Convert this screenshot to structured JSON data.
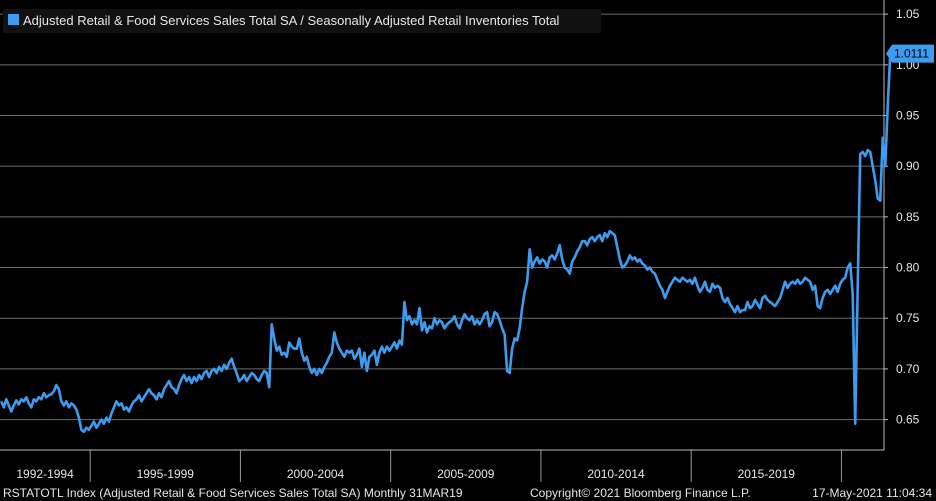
{
  "colors": {
    "background": "#000000",
    "series": "#3d9bf0",
    "grid": "#6b6b6b",
    "legend_bg": "#111111",
    "text": "#e6e6e6"
  },
  "chart_data": {
    "type": "line",
    "title": "",
    "series": [
      {
        "name": "Adjusted Retail & Food Services Sales Total SA / Seasonally Adjusted Retail Inventories Total",
        "x_start": "1992-01",
        "frequency": "monthly",
        "values": [
          0.668,
          0.662,
          0.67,
          0.664,
          0.658,
          0.664,
          0.669,
          0.665,
          0.67,
          0.668,
          0.672,
          0.666,
          0.662,
          0.67,
          0.668,
          0.672,
          0.67,
          0.676,
          0.672,
          0.674,
          0.675,
          0.678,
          0.684,
          0.68,
          0.668,
          0.664,
          0.668,
          0.662,
          0.666,
          0.664,
          0.66,
          0.652,
          0.64,
          0.638,
          0.642,
          0.64,
          0.644,
          0.648,
          0.642,
          0.646,
          0.65,
          0.646,
          0.652,
          0.648,
          0.656,
          0.662,
          0.668,
          0.664,
          0.666,
          0.66,
          0.662,
          0.658,
          0.664,
          0.668,
          0.67,
          0.674,
          0.668,
          0.672,
          0.676,
          0.68,
          0.676,
          0.674,
          0.67,
          0.676,
          0.672,
          0.68,
          0.684,
          0.688,
          0.682,
          0.68,
          0.676,
          0.684,
          0.69,
          0.694,
          0.688,
          0.692,
          0.686,
          0.692,
          0.688,
          0.694,
          0.69,
          0.696,
          0.698,
          0.692,
          0.698,
          0.7,
          0.696,
          0.702,
          0.698,
          0.704,
          0.7,
          0.706,
          0.71,
          0.702,
          0.696,
          0.688,
          0.69,
          0.694,
          0.688,
          0.692,
          0.696,
          0.694,
          0.69,
          0.688,
          0.694,
          0.698,
          0.696,
          0.682,
          0.744,
          0.73,
          0.718,
          0.722,
          0.714,
          0.716,
          0.712,
          0.726,
          0.722,
          0.72,
          0.72,
          0.73,
          0.716,
          0.708,
          0.712,
          0.702,
          0.696,
          0.7,
          0.694,
          0.7,
          0.696,
          0.702,
          0.706,
          0.712,
          0.716,
          0.736,
          0.726,
          0.72,
          0.716,
          0.712,
          0.718,
          0.716,
          0.718,
          0.71,
          0.714,
          0.72,
          0.702,
          0.716,
          0.698,
          0.712,
          0.714,
          0.718,
          0.704,
          0.716,
          0.722,
          0.716,
          0.722,
          0.718,
          0.722,
          0.726,
          0.72,
          0.728,
          0.724,
          0.766,
          0.748,
          0.752,
          0.744,
          0.748,
          0.744,
          0.76,
          0.738,
          0.746,
          0.736,
          0.742,
          0.74,
          0.75,
          0.744,
          0.748,
          0.746,
          0.74,
          0.744,
          0.746,
          0.748,
          0.752,
          0.744,
          0.74,
          0.748,
          0.754,
          0.75,
          0.748,
          0.752,
          0.744,
          0.748,
          0.744,
          0.748,
          0.754,
          0.756,
          0.742,
          0.746,
          0.756,
          0.754,
          0.748,
          0.74,
          0.734,
          0.698,
          0.696,
          0.72,
          0.73,
          0.728,
          0.74,
          0.76,
          0.776,
          0.786,
          0.818,
          0.8,
          0.806,
          0.81,
          0.804,
          0.808,
          0.806,
          0.8,
          0.81,
          0.812,
          0.808,
          0.814,
          0.822,
          0.808,
          0.8,
          0.798,
          0.794,
          0.806,
          0.81,
          0.816,
          0.82,
          0.826,
          0.826,
          0.822,
          0.828,
          0.83,
          0.826,
          0.83,
          0.832,
          0.826,
          0.834,
          0.83,
          0.836,
          0.834,
          0.832,
          0.82,
          0.808,
          0.8,
          0.802,
          0.806,
          0.812,
          0.808,
          0.81,
          0.806,
          0.808,
          0.804,
          0.802,
          0.798,
          0.8,
          0.796,
          0.794,
          0.788,
          0.782,
          0.778,
          0.77,
          0.776,
          0.782,
          0.786,
          0.79,
          0.788,
          0.786,
          0.79,
          0.788,
          0.786,
          0.788,
          0.784,
          0.79,
          0.782,
          0.776,
          0.78,
          0.786,
          0.778,
          0.776,
          0.784,
          0.78,
          0.782,
          0.78,
          0.77,
          0.766,
          0.77,
          0.764,
          0.76,
          0.756,
          0.762,
          0.756,
          0.758,
          0.758,
          0.766,
          0.76,
          0.762,
          0.768,
          0.764,
          0.76,
          0.77,
          0.772,
          0.768,
          0.766,
          0.764,
          0.762,
          0.766,
          0.77,
          0.778,
          0.786,
          0.78,
          0.784,
          0.786,
          0.784,
          0.788,
          0.784,
          0.786,
          0.79,
          0.788,
          0.786,
          0.778,
          0.782,
          0.762,
          0.76,
          0.77,
          0.776,
          0.778,
          0.774,
          0.778,
          0.782,
          0.776,
          0.784,
          0.788,
          0.79,
          0.8,
          0.804,
          0.774,
          0.646,
          0.782,
          0.912,
          0.914,
          0.91,
          0.916,
          0.914,
          0.9,
          0.886,
          0.868,
          0.866,
          0.928,
          0.9,
          0.96,
          1.0111
        ]
      }
    ],
    "last_value": 1.0111,
    "last_value_label": "1.0111",
    "ylim": [
      0.62,
      1.06
    ],
    "yticks": [
      0.65,
      0.7,
      0.75,
      0.8,
      0.85,
      0.9,
      0.95,
      1.0,
      1.05
    ],
    "ytick_labels": [
      "0.65",
      "0.70",
      "0.75",
      "0.80",
      "0.85",
      "0.90",
      "0.95",
      "1.00",
      "1.05"
    ],
    "x_categories": [
      "1992-1994",
      "1995-1999",
      "2000-2004",
      "2005-2009",
      "2010-2014",
      "2015-2019"
    ],
    "x_category_ranges": [
      [
        "1992-01",
        "1994-12"
      ],
      [
        "1995-01",
        "1999-12"
      ],
      [
        "2000-01",
        "2004-12"
      ],
      [
        "2005-01",
        "2009-12"
      ],
      [
        "2010-01",
        "2014-12"
      ],
      [
        "2015-01",
        "2019-12"
      ]
    ],
    "xlim": [
      "1992-01",
      "2021-05"
    ],
    "grid": "horizontal",
    "legend_position": "top-left",
    "y_axis_side": "right"
  },
  "footer": {
    "left": "RSTATOTL Index (Adjusted Retail & Food Services Sales Total SA)  Monthly 31MAR19",
    "copyright": "Copyright© 2021 Bloomberg Finance L.P.",
    "timestamp": "17-May-2021 11:04:34"
  }
}
